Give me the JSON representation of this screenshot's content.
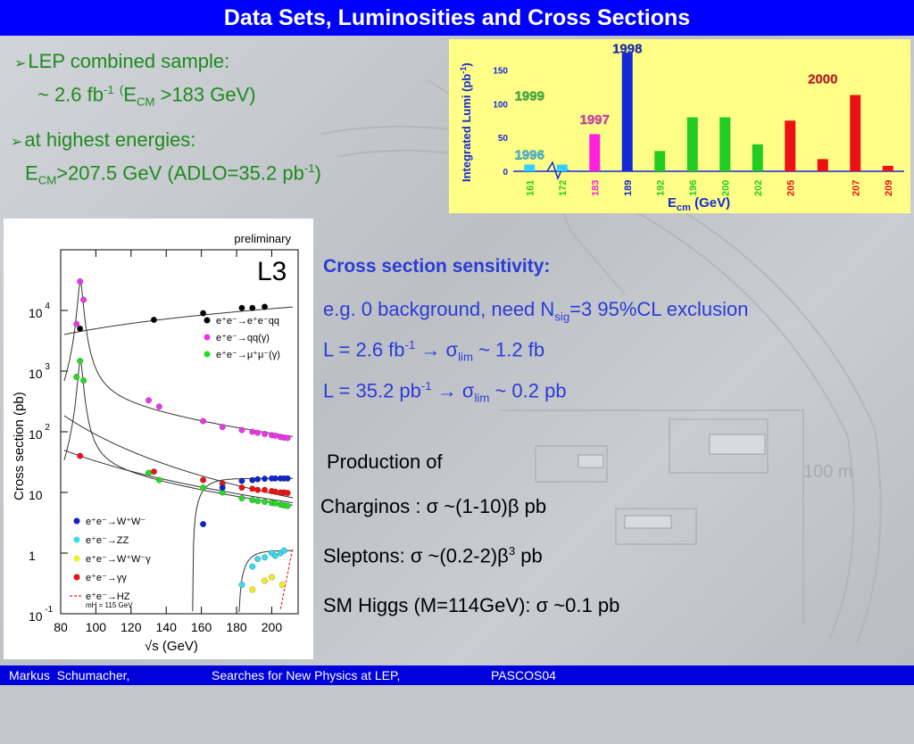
{
  "slide": {
    "title": "Data Sets, Luminosities and Cross Sections",
    "bullets": {
      "b1_line1": "LEP combined sample:",
      "b1_line2_pre": "~ 2.6 fb",
      "b1_line2_sup": "-1",
      "b1_line2_paren": "(",
      "b1_line2_E": "E",
      "b1_line2_sub": "CM",
      "b1_line2_post": "  >183 GeV)",
      "b2_line1": "at highest energies:",
      "b2_line2_E": "E",
      "b2_line2_sub": "CM",
      "b2_line2_mid": ">207.5 GeV (ADLO=35.2 pb",
      "b2_line2_sup": "-1",
      "b2_line2_post": ")"
    },
    "sensitivity": {
      "heading": "Cross section sensitivity:",
      "line1_pre": "e.g. 0 background,  need N",
      "line1_sub": "sig",
      "line1_post": "=3  95%CL exclusion",
      "line2_pre": "L =   2.6 fb",
      "line2_sup": "-1",
      "line2_arrow": "→",
      "line2_sigma": "σ",
      "line2_sub": "lim",
      "line2_post": " ~ 1.2 fb",
      "line3_pre": "L = 35.2 pb",
      "line3_sup": "-1",
      "line3_arrow": "→",
      "line3_sigma": "σ",
      "line3_sub": "lim",
      "line3_post": " ~ 0.2 pb"
    },
    "production": {
      "heading": "Production of",
      "charginos": "Charginos : σ ~(1-10)β pb",
      "sleptons_pre": "Sleptons:   σ ~(0.2-2)β",
      "sleptons_sup": "3",
      "sleptons_post": " pb",
      "higgs": "SM Higgs (M=114GeV): σ ~0.1 pb"
    },
    "footer": {
      "author": "Markus  Schumacher,",
      "talk": "Searches for New Physics at LEP,",
      "conf": "PASCOS04"
    },
    "colors": {
      "title_bg": "#0000ff",
      "bullet_green": "#1e8a1e",
      "heading_blue": "#2b3bd8"
    }
  },
  "chart_data": [
    {
      "type": "bar",
      "ylabel": "Integrated Lumi (pb",
      "ylabel_sup": "-1",
      "ylabel_post": ")",
      "xlabel": "E",
      "xlabel_sub": "cm",
      "xlabel_post": " (GeV)",
      "yticks": [
        0,
        50,
        100,
        150
      ],
      "ylim": [
        0,
        185
      ],
      "year_labels": [
        {
          "text": "1996",
          "color": "#33d0ff",
          "at": 161,
          "level": 18
        },
        {
          "text": "1997",
          "color": "#ff33cc",
          "at": 183,
          "level": 70
        },
        {
          "text": "1998",
          "color": "#1428d8",
          "at": 189,
          "level": 175
        },
        {
          "text": "1999",
          "color": "#33cc33",
          "at": 198,
          "level": 105
        },
        {
          "text": "2000",
          "color": "#ee1111",
          "at": 206,
          "level": 130
        }
      ],
      "bars": [
        {
          "x": "161",
          "value": 10,
          "color": "#33d0ff"
        },
        {
          "x": "172",
          "value": 10,
          "color": "#33d0ff"
        },
        {
          "x": "183",
          "value": 55,
          "color": "#ff22dd"
        },
        {
          "x": "189",
          "value": 176,
          "color": "#1428d8"
        },
        {
          "x": "192",
          "value": 30,
          "color": "#22cc22"
        },
        {
          "x": "196",
          "value": 80,
          "color": "#22cc22"
        },
        {
          "x": "200",
          "value": 80,
          "color": "#22cc22"
        },
        {
          "x": "202",
          "value": 40,
          "color": "#22cc22"
        },
        {
          "x": "205",
          "value": 75,
          "color": "#ee1111"
        },
        {
          "x": "206",
          "value": 18,
          "color": "#ee1111"
        },
        {
          "x": "207",
          "value": 113,
          "color": "#ee1111"
        },
        {
          "x": "209",
          "value": 8,
          "color": "#ee1111"
        }
      ],
      "xtick_labels": [
        {
          "text": "161",
          "color": "#22cc22"
        },
        {
          "text": "172",
          "color": "#22cc22"
        },
        {
          "text": "183",
          "color": "#ff22dd"
        },
        {
          "text": "189",
          "color": "#1428d8"
        },
        {
          "text": "192",
          "color": "#22cc22"
        },
        {
          "text": "196",
          "color": "#22cc22"
        },
        {
          "text": "200",
          "color": "#22cc22"
        },
        {
          "text": "202",
          "color": "#22cc22"
        },
        {
          "text": "205",
          "color": "#ee1111"
        },
        {
          "text": "207",
          "color": "#ee1111"
        },
        {
          "text": "209",
          "color": "#ee1111"
        }
      ]
    },
    {
      "type": "scatter",
      "note": "preliminary",
      "experiment": "L3",
      "ylabel": "Cross section (pb)",
      "xlabel": "√s (GeV)",
      "yscale": "log",
      "ylim": [
        0.1,
        100000
      ],
      "xlim": [
        80,
        215
      ],
      "xticks": [
        80,
        100,
        120,
        140,
        160,
        180,
        200
      ],
      "yticks": [
        {
          "base": "10",
          "exp": "-1",
          "value": 0.1
        },
        {
          "base": "1",
          "exp": "",
          "value": 1
        },
        {
          "base": "10",
          "exp": "",
          "value": 10
        },
        {
          "base": "10",
          "exp": "2",
          "value": 100
        },
        {
          "base": "10",
          "exp": "3",
          "value": 1000
        },
        {
          "base": "10",
          "exp": "4",
          "value": 10000
        }
      ],
      "legend_top": [
        {
          "label": "e⁺e⁻→e⁺e⁻qq",
          "color": "#000000"
        },
        {
          "label": "e⁺e⁻→qq(γ)",
          "color": "#ee33ee"
        },
        {
          "label": "e⁺e⁻→μ⁺μ⁻(γ)",
          "color": "#22dd22"
        }
      ],
      "legend_bottom": [
        {
          "label": "e⁺e⁻→W⁺W⁻",
          "color": "#1122cc",
          "marker": "dot"
        },
        {
          "label": "e⁺e⁻→ZZ",
          "color": "#33ddee",
          "marker": "dot"
        },
        {
          "label": "e⁺e⁻→W⁺W⁻γ",
          "color": "#eeee22",
          "marker": "dot"
        },
        {
          "label": "e⁺e⁻→γγ",
          "color": "#ee1111",
          "marker": "dot"
        },
        {
          "label": "e⁺e⁻→HZ",
          "color": "#ee2222",
          "marker": "dashed"
        }
      ],
      "legend_note": "mH = 115 GeV",
      "series": [
        {
          "name": "e⁺e⁻→e⁺e⁻qq",
          "color": "#000000",
          "points": [
            [
              91,
              5000
            ],
            [
              133,
              7000
            ],
            [
              161,
              9000
            ],
            [
              183,
              11000
            ],
            [
              189,
              11000
            ],
            [
              196,
              11500
            ]
          ]
        },
        {
          "name": "e⁺e⁻→qq(γ)",
          "color": "#ee33ee",
          "points": [
            [
              89,
              6000
            ],
            [
              91,
              30000
            ],
            [
              93,
              15000
            ],
            [
              130,
              330
            ],
            [
              136,
              260
            ],
            [
              161,
              150
            ],
            [
              172,
              120
            ],
            [
              183,
              107
            ],
            [
              189,
              100
            ],
            [
              192,
              96
            ],
            [
              196,
              92
            ],
            [
              200,
              88
            ],
            [
              202,
              86
            ],
            [
              205,
              82
            ],
            [
              207,
              80
            ],
            [
              209,
              79
            ]
          ]
        },
        {
          "name": "e⁺e⁻→μ⁺μ⁻(γ)",
          "color": "#22dd22",
          "points": [
            [
              89,
              800
            ],
            [
              91,
              1470
            ],
            [
              93,
              700
            ],
            [
              130,
              21
            ],
            [
              136,
              16
            ],
            [
              161,
              12
            ],
            [
              172,
              10
            ],
            [
              183,
              8
            ],
            [
              189,
              7.5
            ],
            [
              192,
              7.2
            ],
            [
              196,
              7
            ],
            [
              200,
              6.7
            ],
            [
              202,
              6.6
            ],
            [
              205,
              6.3
            ],
            [
              207,
              6.1
            ],
            [
              209,
              6
            ]
          ]
        },
        {
          "name": "e⁺e⁻→γγ",
          "color": "#ee1111",
          "points": [
            [
              91,
              40
            ],
            [
              133,
              22
            ],
            [
              161,
              16
            ],
            [
              172,
              14
            ],
            [
              183,
              12
            ],
            [
              189,
              11.5
            ],
            [
              192,
              11
            ],
            [
              196,
              11
            ],
            [
              200,
              10.5
            ],
            [
              202,
              10.3
            ],
            [
              205,
              10
            ],
            [
              207,
              10
            ],
            [
              209,
              9.8
            ]
          ]
        },
        {
          "name": "e⁺e⁻→W⁺W⁻",
          "color": "#1122cc",
          "points": [
            [
              161,
              3
            ],
            [
              172,
              12
            ],
            [
              183,
              15.5
            ],
            [
              189,
              16
            ],
            [
              192,
              16.5
            ],
            [
              196,
              16.8
            ],
            [
              200,
              17
            ],
            [
              202,
              17
            ],
            [
              205,
              17
            ],
            [
              207,
              17
            ],
            [
              209,
              17
            ]
          ]
        },
        {
          "name": "e⁺e⁻→ZZ",
          "color": "#33ddee",
          "points": [
            [
              183,
              0.3
            ],
            [
              189,
              0.6
            ],
            [
              192,
              0.8
            ],
            [
              196,
              0.85
            ],
            [
              200,
              1.0
            ],
            [
              202,
              0.9
            ],
            [
              205,
              1.0
            ],
            [
              207,
              1.1
            ]
          ]
        },
        {
          "name": "e⁺e⁻→W⁺W⁻γ",
          "color": "#eeee22",
          "points": [
            [
              189,
              0.25
            ],
            [
              196,
              0.35
            ],
            [
              200,
              0.4
            ],
            [
              206,
              0.3
            ]
          ]
        }
      ]
    }
  ]
}
